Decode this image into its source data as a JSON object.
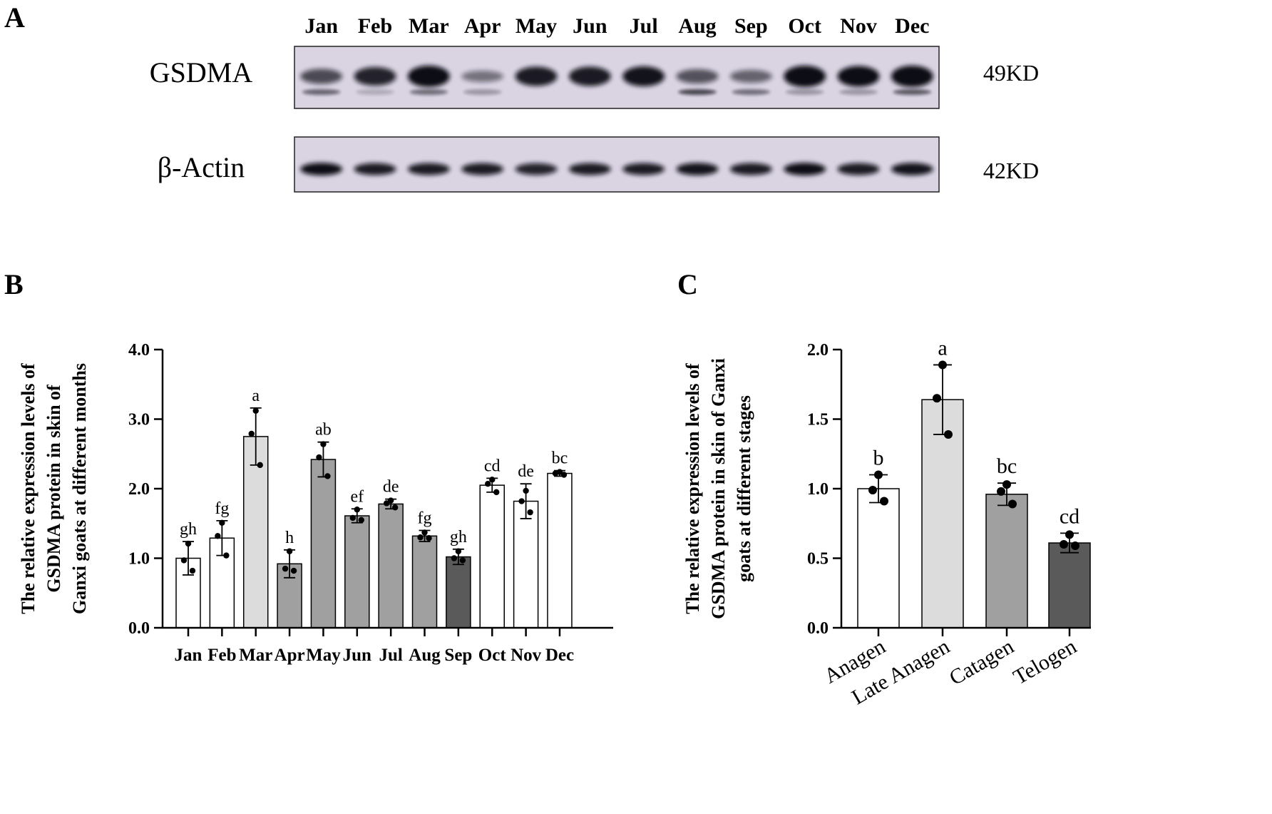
{
  "panels": {
    "a": "A",
    "b": "B",
    "c": "C"
  },
  "blot": {
    "months": [
      "Jan",
      "Feb",
      "Mar",
      "Apr",
      "May",
      "Jun",
      "Jul",
      "Aug",
      "Sep",
      "Oct",
      "Nov",
      "Dec"
    ],
    "rows": [
      {
        "label": "GSDMA",
        "size": "49KD",
        "intensity": [
          0.55,
          0.8,
          1.0,
          0.3,
          0.85,
          0.85,
          0.9,
          0.5,
          0.4,
          1.0,
          0.95,
          1.0
        ],
        "lower_band": [
          0.55,
          0.2,
          0.5,
          0.3,
          0.0,
          0.0,
          0.0,
          0.7,
          0.5,
          0.3,
          0.3,
          0.6
        ]
      },
      {
        "label": "β-Actin",
        "size": "42KD",
        "intensity": [
          0.95,
          0.85,
          0.85,
          0.85,
          0.8,
          0.85,
          0.85,
          0.9,
          0.85,
          0.95,
          0.85,
          0.9
        ],
        "lower_band": []
      }
    ],
    "colors": {
      "membrane": "#d9d3e2",
      "band": "#0d0b12"
    }
  },
  "chart_data": [
    {
      "type": "bar",
      "panel": "B",
      "categories": [
        "Jan",
        "Feb",
        "Mar",
        "Apr",
        "May",
        "Jun",
        "Jul",
        "Aug",
        "Sep",
        "Oct",
        "Nov",
        "Dec"
      ],
      "values": [
        1.0,
        1.29,
        2.75,
        0.92,
        2.42,
        1.61,
        1.78,
        1.32,
        1.02,
        2.05,
        1.82,
        2.22
      ],
      "error": [
        0.24,
        0.25,
        0.41,
        0.2,
        0.25,
        0.1,
        0.07,
        0.08,
        0.11,
        0.1,
        0.25,
        0.04
      ],
      "points": [
        [
          1.21,
          0.97,
          0.82
        ],
        [
          1.51,
          1.32,
          1.04
        ],
        [
          3.12,
          2.79,
          2.34
        ],
        [
          1.1,
          0.85,
          0.82
        ],
        [
          2.64,
          2.45,
          2.18
        ],
        [
          1.7,
          1.58,
          1.55
        ],
        [
          1.83,
          1.79,
          1.73
        ],
        [
          1.37,
          1.3,
          1.29
        ],
        [
          1.1,
          1.0,
          0.97
        ],
        [
          2.13,
          2.07,
          1.95
        ],
        [
          1.97,
          1.82,
          1.66
        ],
        [
          2.24,
          2.22,
          2.2
        ]
      ],
      "letters": [
        "gh",
        "fg",
        "a",
        "h",
        "ab",
        "ef",
        "de",
        "fg",
        "gh",
        "cd",
        "de",
        "bc"
      ],
      "fills": [
        "#ffffff",
        "#ffffff",
        "#dcdcdc",
        "#a0a0a0",
        "#a0a0a0",
        "#a0a0a0",
        "#a0a0a0",
        "#a0a0a0",
        "#5a5a5a",
        "#ffffff",
        "#ffffff",
        "#ffffff"
      ],
      "ylabel": [
        "The relative expression levels of",
        "GSDMA protein in skin of",
        "Ganxi goats at different months"
      ],
      "yticks": [
        "0.0",
        "1.0",
        "2.0",
        "3.0",
        "4.0"
      ],
      "ylim": [
        0,
        4
      ],
      "grid": false
    },
    {
      "type": "bar",
      "panel": "C",
      "categories": [
        "Anagen",
        "Late Anagen",
        "Catagen",
        "Telogen"
      ],
      "values": [
        1.0,
        1.64,
        0.96,
        0.61
      ],
      "error": [
        0.1,
        0.25,
        0.08,
        0.07
      ],
      "points": [
        [
          1.1,
          0.99,
          0.91
        ],
        [
          1.89,
          1.65,
          1.39
        ],
        [
          1.03,
          0.98,
          0.89
        ],
        [
          0.67,
          0.6,
          0.59
        ]
      ],
      "letters": [
        "b",
        "a",
        "bc",
        "cd"
      ],
      "fills": [
        "#ffffff",
        "#dcdcdc",
        "#a0a0a0",
        "#5a5a5a"
      ],
      "ylabel": [
        "The relative expression levels of",
        "GSDMA protein in skin of Ganxi",
        "goats at different stages"
      ],
      "yticks": [
        "0.0",
        "0.5",
        "1.0",
        "1.5",
        "2.0"
      ],
      "ylim": [
        0,
        2
      ],
      "grid": false
    }
  ]
}
